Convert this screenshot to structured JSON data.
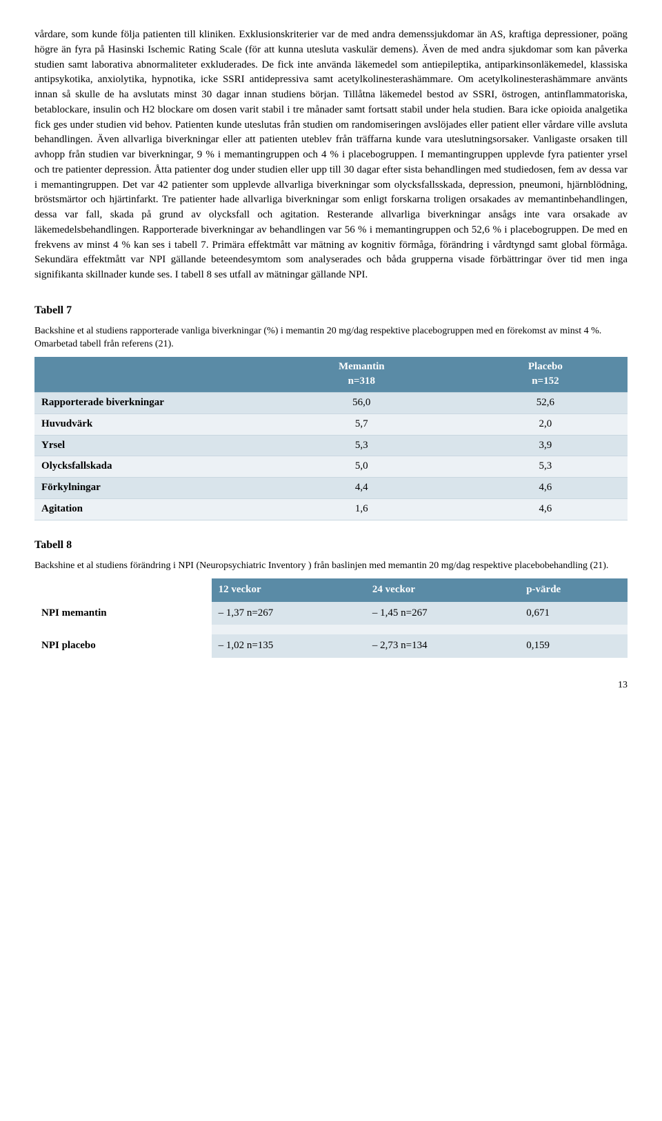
{
  "body_text": "vårdare, som kunde följa patienten till kliniken. Exklusionskriterier var de med andra demenssjukdomar än AS, kraftiga depressioner, poäng högre än fyra på Hasinski Ischemic Rating Scale (för att kunna utesluta vaskulär demens). Även de med andra sjukdomar som kan påverka studien samt laborativa abnormaliteter exkluderades. De fick inte använda läkemedel som antiepileptika, antiparkinsonläkemedel, klassiska antipsykotika, anxiolytika, hypnotika, icke SSRI antidepressiva samt acetylkolinesterashämmare. Om acetylkolinesterashämmare använts innan så skulle de ha avslutats minst 30 dagar innan studiens början. Tillåtna läkemedel bestod av SSRI, östrogen, antinflammatoriska, betablockare, insulin och H2 blockare om dosen varit stabil i tre månader samt fortsatt stabil under hela studien. Bara icke opioida analgetika fick ges under studien vid behov. Patienten kunde uteslutas från studien om randomiseringen avslöjades eller patient eller vårdare ville avsluta behandlingen. Även allvarliga biverkningar eller att patienten uteblev från träffarna kunde vara uteslutningsorsaker. Vanligaste orsaken till avhopp från studien var biverkningar, 9 % i memantingruppen och 4 % i placebogruppen. I memantingruppen upplevde fyra patienter yrsel och tre patienter depression. Åtta patienter dog under studien eller upp till 30 dagar efter sista behandlingen med studiedosen, fem av dessa var i memantingruppen. Det var 42 patienter som upplevde allvarliga biverkningar som olycksfallsskada, depression, pneumoni, hjärnblödning, bröstsmärtor och hjärtinfarkt. Tre patienter hade allvarliga biverkningar som enligt forskarna troligen orsakades av memantinbehandlingen, dessa var fall, skada på grund av olycksfall och agitation. Resterande allvarliga biverkningar ansågs inte vara orsakade av läkemedelsbehandlingen. Rapporterade biverkningar av behandlingen var 56 % i memantingruppen och 52,6 % i placebogruppen. De med en frekvens av minst 4 % kan ses i tabell 7. Primära effektmått var mätning av kognitiv förmåga, förändring i vårdtyngd samt global förmåga. Sekundära effektmått var NPI gällande beteendesymtom som analyserades och båda grupperna visade förbättringar över tid men inga signifikanta skillnader kunde ses. I tabell 8 ses utfall av mätningar gällande NPI.",
  "table7": {
    "heading": "Tabell 7",
    "caption": "Backshine et al studiens rapporterade vanliga biverkningar (%) i memantin 20 mg/dag respektive placebogruppen med en förekomst av minst 4 %. Omarbetad tabell från referens (21).",
    "col2_h": "Memantin",
    "col2_sub": "n=318",
    "col3_h": "Placebo",
    "col3_sub": "n=152",
    "rows": [
      {
        "label": "Rapporterade biverkningar",
        "c2": "56,0",
        "c3": "52,6"
      },
      {
        "label": "Huvudvärk",
        "c2": "5,7",
        "c3": "2,0"
      },
      {
        "label": "Yrsel",
        "c2": "5,3",
        "c3": "3,9"
      },
      {
        "label": "Olycksfallskada",
        "c2": "5,0",
        "c3": "5,3"
      },
      {
        "label": "Förkylningar",
        "c2": "4,4",
        "c3": "4,6"
      },
      {
        "label": "Agitation",
        "c2": "1,6",
        "c3": "4,6"
      }
    ]
  },
  "table8": {
    "heading": "Tabell 8",
    "caption": "Backshine et al studiens förändring i NPI (Neuropsychiatric Inventory ) från baslinjen med memantin 20 mg/dag respektive placebobehandling (21).",
    "h2": "12 veckor",
    "h3": "24 veckor",
    "h4": "p-värde",
    "r1_label": "NPI memantin",
    "r1_c2": "– 1,37 n=267",
    "r1_c3": "– 1,45 n=267",
    "r1_c4": "0,671",
    "r2_label": "NPI placebo",
    "r2_c2": "– 1,02 n=135",
    "r2_c3": "– 2,73 n=134",
    "r2_c4": "0,159"
  },
  "page_number": "13"
}
